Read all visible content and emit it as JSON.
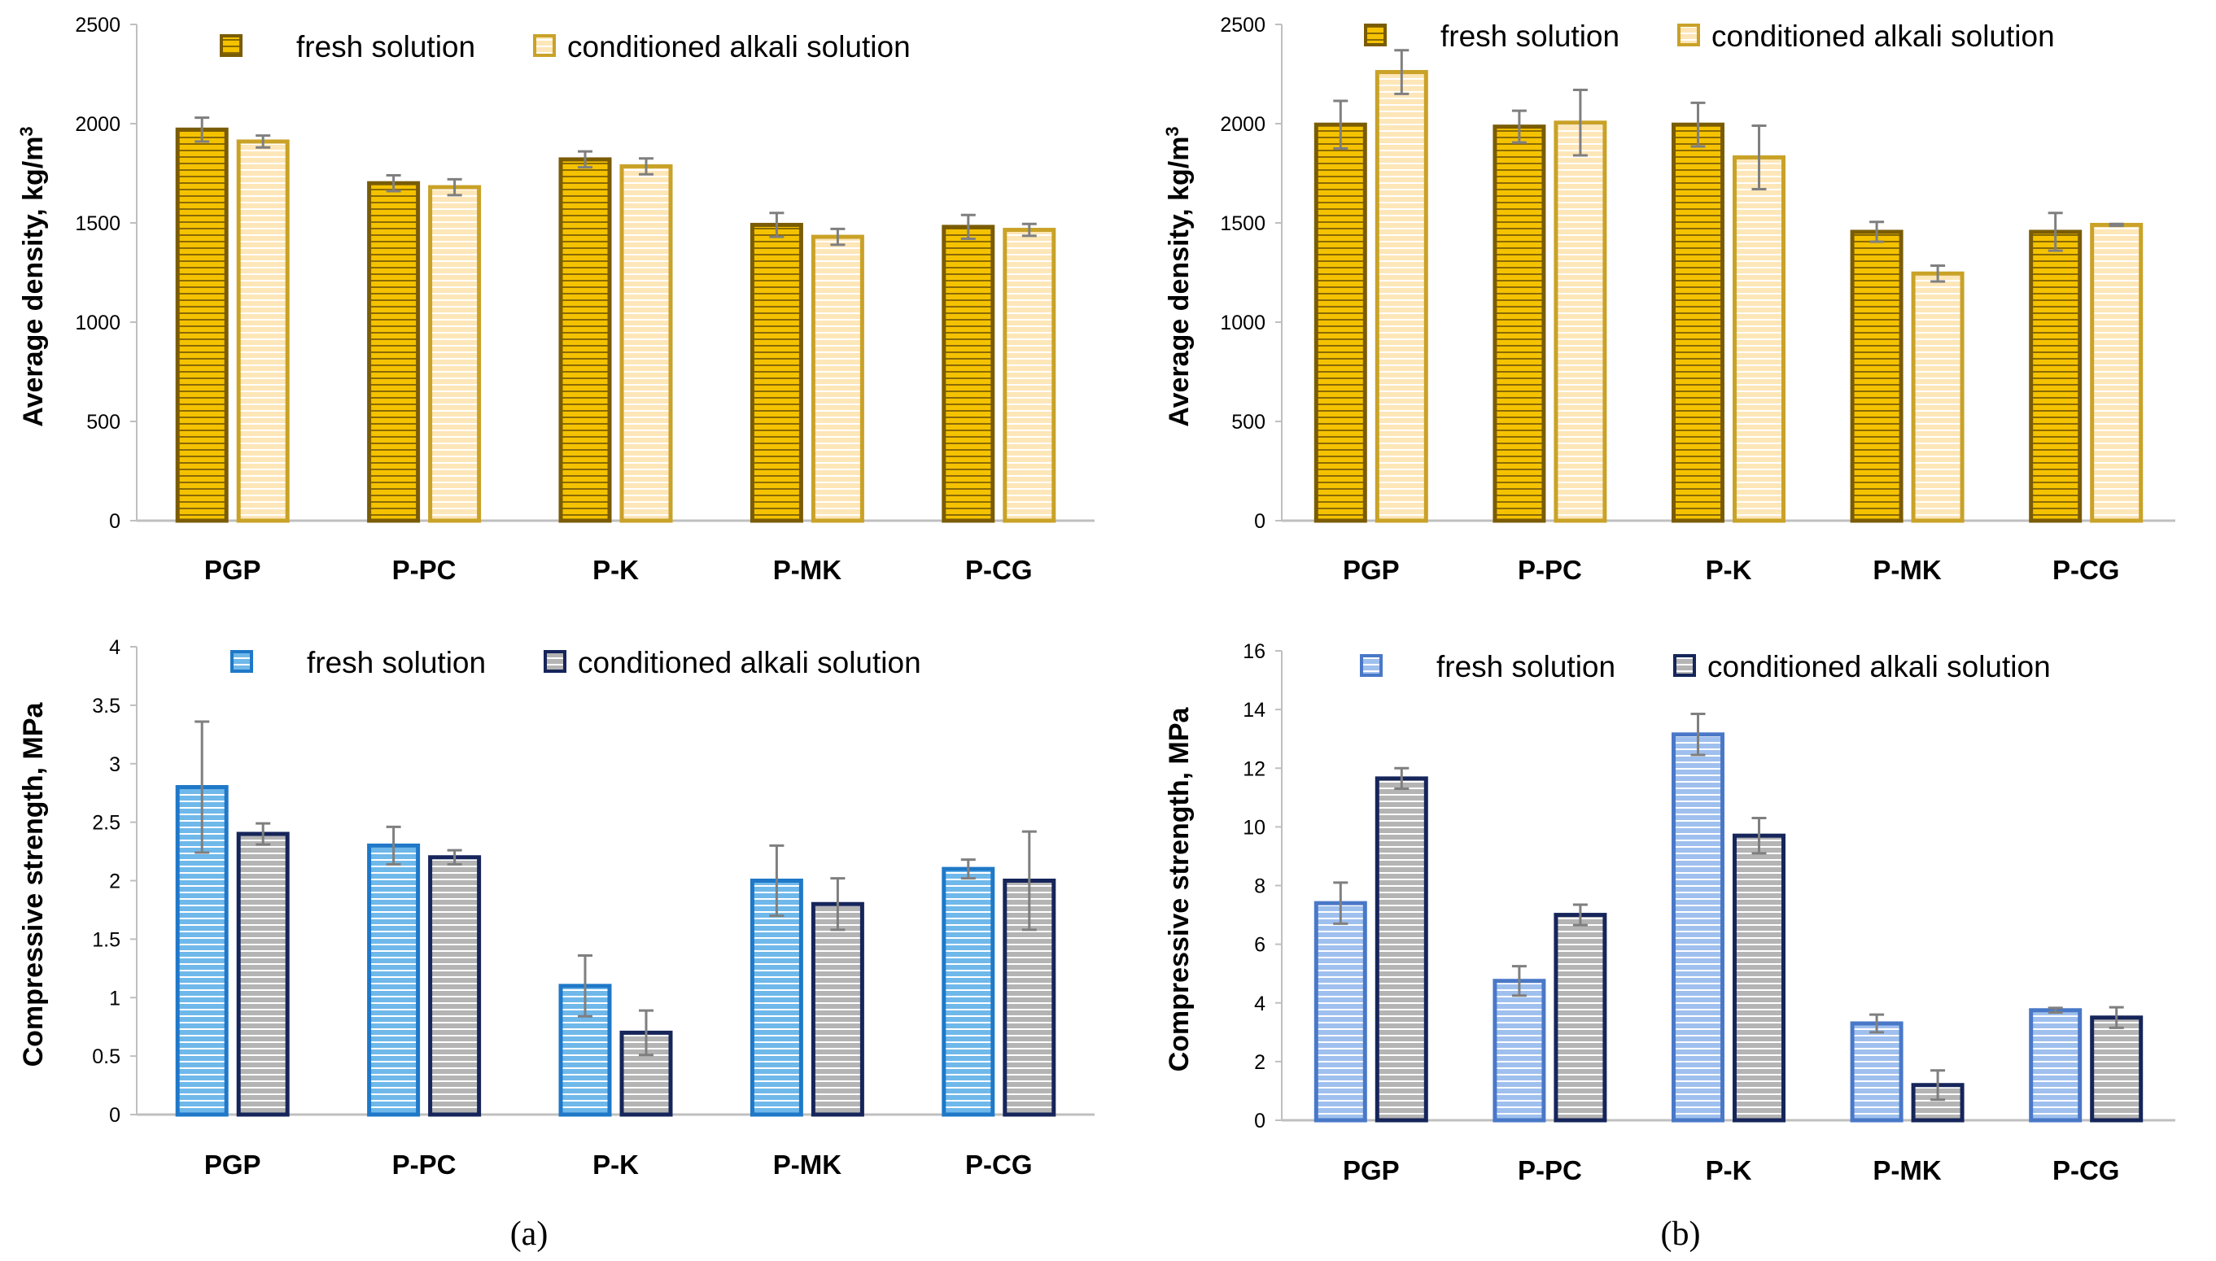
{
  "colors": {
    "gold_fill": "#f5c200",
    "gold_stroke": "#7a5c05",
    "cream_fill": "#fde6b8",
    "cream_stroke": "#c9a227",
    "blue_fill": "#6fb8ea",
    "blue_stroke": "#1f78c8",
    "gray_fill": "#b4b4b4",
    "navy_stroke": "#16255a",
    "lblue_fill": "#9fc0ee",
    "lblue_stroke": "#4a78c8",
    "error_bar": "#7f7f7f",
    "axis": "#bfbfbf"
  },
  "captions": [
    "(a)",
    "(b)"
  ],
  "chart_data": [
    {
      "id": "top-left",
      "type": "bar",
      "title": "",
      "ylabel": "Average density, kg/m",
      "ylabel_sup": "3",
      "ylim": [
        0,
        2500
      ],
      "yticks": [
        0,
        500,
        1000,
        1500,
        2000,
        2500
      ],
      "categories": [
        "PGP",
        "P-PC",
        "P-K",
        "P-MK",
        "P-CG"
      ],
      "legend_position": "top",
      "series": [
        {
          "name": "fresh solution",
          "style": "gold",
          "values": [
            1970,
            1700,
            1820,
            1490,
            1480
          ],
          "errors": [
            60,
            40,
            40,
            60,
            60
          ]
        },
        {
          "name": "conditioned alkali solution",
          "style": "cream",
          "values": [
            1910,
            1680,
            1785,
            1430,
            1465
          ],
          "errors": [
            30,
            40,
            40,
            40,
            30
          ]
        }
      ]
    },
    {
      "id": "top-right",
      "type": "bar",
      "title": "",
      "ylabel": "Average density, kg/m",
      "ylabel_sup": "3",
      "ylim": [
        0,
        2500
      ],
      "yticks": [
        0,
        500,
        1000,
        1500,
        2000,
        2500
      ],
      "categories": [
        "PGP",
        "P-PC",
        "P-K",
        "P-MK",
        "P-CG"
      ],
      "legend_position": "top",
      "series": [
        {
          "name": "fresh solution",
          "style": "gold",
          "values": [
            1995,
            1985,
            1995,
            1455,
            1455
          ],
          "errors": [
            120,
            80,
            110,
            50,
            95
          ]
        },
        {
          "name": "conditioned alkali solution",
          "style": "cream",
          "values": [
            2260,
            2005,
            1830,
            1245,
            1490
          ],
          "errors": [
            110,
            165,
            160,
            40,
            5
          ]
        }
      ]
    },
    {
      "id": "bottom-left",
      "type": "bar",
      "title": "",
      "ylabel": "Compressive strength, MPa",
      "ylim": [
        0,
        4
      ],
      "yticks": [
        0,
        0.5,
        1,
        1.5,
        2,
        2.5,
        3,
        3.5,
        4
      ],
      "categories": [
        "PGP",
        "P-PC",
        "P-K",
        "P-MK",
        "P-CG"
      ],
      "legend_position": "top",
      "series": [
        {
          "name": "fresh solution",
          "style": "blue",
          "values": [
            2.8,
            2.3,
            1.1,
            2.0,
            2.1
          ],
          "errors": [
            0.56,
            0.16,
            0.26,
            0.3,
            0.08
          ]
        },
        {
          "name": "conditioned alkali solution",
          "style": "navy",
          "values": [
            2.4,
            2.2,
            0.7,
            1.8,
            2.0
          ],
          "errors": [
            0.09,
            0.06,
            0.19,
            0.22,
            0.42
          ]
        }
      ]
    },
    {
      "id": "bottom-right",
      "type": "bar",
      "title": "",
      "ylabel": "Compressive strength, MPa",
      "ylim": [
        0,
        16
      ],
      "yticks": [
        0,
        2,
        4,
        6,
        8,
        10,
        12,
        14,
        16
      ],
      "categories": [
        "PGP",
        "P-PC",
        "P-K",
        "P-MK",
        "P-CG"
      ],
      "legend_position": "top",
      "series": [
        {
          "name": "fresh solution",
          "style": "lblue",
          "values": [
            7.4,
            4.75,
            13.15,
            3.3,
            3.75
          ],
          "errors": [
            0.7,
            0.5,
            0.7,
            0.3,
            0.08
          ]
        },
        {
          "name": "conditioned alkali solution",
          "style": "navy",
          "values": [
            11.65,
            7.0,
            9.7,
            1.2,
            3.5
          ],
          "errors": [
            0.35,
            0.35,
            0.6,
            0.5,
            0.35
          ]
        }
      ]
    }
  ]
}
